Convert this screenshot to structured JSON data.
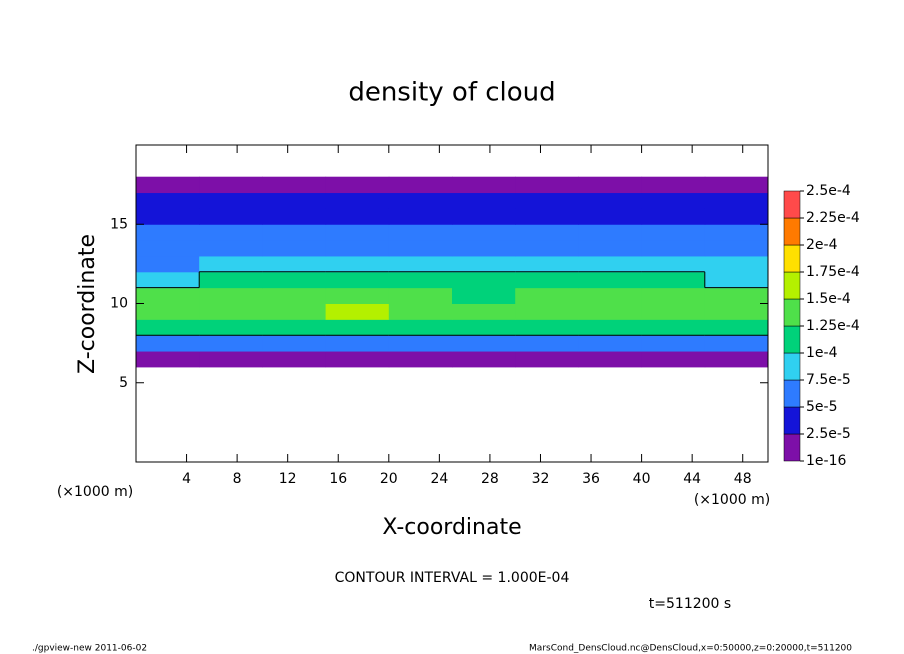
{
  "chart_data": {
    "type": "heatmap",
    "title": "density of cloud",
    "x_label": "X-coordinate",
    "y_label": "Z-coordinate",
    "x_unit": "(×1000 m)",
    "y_unit": "(×1000 m)",
    "contour_note": "CONTOUR INTERVAL = 1.000E-04",
    "time_note": "t=511200 s",
    "footer_left": "./gpview-new  2011-06-02",
    "footer_right": "MarsCond_DensCloud.nc@DensCloud,x=0:50000,z=0:20000,t=511200",
    "xlim": [
      0,
      50
    ],
    "ylim": [
      0,
      20
    ],
    "xticks": [
      4,
      8,
      12,
      16,
      20,
      24,
      28,
      32,
      36,
      40,
      44,
      48
    ],
    "yticks": [
      5,
      10,
      15
    ],
    "xbins": [
      0,
      5,
      10,
      15,
      20,
      25,
      30,
      35,
      40,
      45,
      50
    ],
    "ybins": [
      5,
      6,
      7,
      8,
      9,
      10,
      11,
      12,
      13,
      14,
      15,
      16,
      17,
      18,
      19
    ],
    "contour_level": 0.0001,
    "values": [
      [
        null,
        null,
        null,
        null,
        null,
        null,
        null,
        null,
        null,
        null
      ],
      [
        1.2e-05,
        1.2e-05,
        1.2e-05,
        1.2e-05,
        1.5e-05,
        1e-05,
        1.2e-05,
        1.2e-05,
        1.2e-05,
        1.2e-05
      ],
      [
        6.5e-05,
        7e-05,
        6.5e-05,
        6.5e-05,
        6e-05,
        5.5e-05,
        6.5e-05,
        7e-05,
        7e-05,
        6.5e-05
      ],
      [
        0.000105,
        0.00011,
        0.00011,
        0.000115,
        0.000105,
        0.0001,
        0.000105,
        0.00011,
        0.00011,
        0.000105
      ],
      [
        0.000135,
        0.00014,
        0.000145,
        0.00015,
        0.000135,
        0.000125,
        0.00013,
        0.000135,
        0.000135,
        0.00013
      ],
      [
        0.00013,
        0.000135,
        0.00014,
        0.000145,
        0.00013,
        0.00012,
        0.00013,
        0.000135,
        0.000135,
        0.000125
      ],
      [
        9e-05,
        0.0001,
        0.000105,
        0.000105,
        0.0001,
        0.000105,
        0.00011,
        0.000115,
        0.00011,
        9e-05
      ],
      [
        7e-05,
        7.5e-05,
        7.5e-05,
        7.5e-05,
        8e-05,
        8.5e-05,
        8.5e-05,
        9e-05,
        8.5e-05,
        7.5e-05
      ],
      [
        6e-05,
        6e-05,
        6e-05,
        6e-05,
        6.5e-05,
        7e-05,
        7e-05,
        7e-05,
        7e-05,
        6e-05
      ],
      [
        5e-05,
        5e-05,
        5e-05,
        5.5e-05,
        5.5e-05,
        6e-05,
        5.5e-05,
        5.5e-05,
        5.5e-05,
        5e-05
      ],
      [
        4e-05,
        4e-05,
        4e-05,
        4.5e-05,
        4.5e-05,
        4.5e-05,
        4.5e-05,
        4.5e-05,
        4.5e-05,
        4e-05
      ],
      [
        2.5e-05,
        2.5e-05,
        2.5e-05,
        2.5e-05,
        3e-05,
        3e-05,
        3e-05,
        3e-05,
        3e-05,
        2.5e-05
      ],
      [
        1e-05,
        1e-05,
        8e-06,
        8e-06,
        1e-05,
        1.2e-05,
        1.5e-05,
        1.5e-05,
        1.5e-05,
        1.2e-05
      ],
      [
        null,
        null,
        null,
        null,
        null,
        null,
        null,
        null,
        null,
        null
      ]
    ],
    "colorbar": {
      "levels": [
        {
          "value": 1e-16,
          "label": "1e-16"
        },
        {
          "value": 2.5e-05,
          "label": "2.5e-5"
        },
        {
          "value": 5e-05,
          "label": "5e-5"
        },
        {
          "value": 7.5e-05,
          "label": "7.5e-5"
        },
        {
          "value": 0.0001,
          "label": "1e-4"
        },
        {
          "value": 0.000125,
          "label": "1.25e-4"
        },
        {
          "value": 0.00015,
          "label": "1.5e-4"
        },
        {
          "value": 0.000175,
          "label": "1.75e-4"
        },
        {
          "value": 0.0002,
          "label": "2e-4"
        },
        {
          "value": 0.000225,
          "label": "2.25e-4"
        },
        {
          "value": 0.00025,
          "label": "2.5e-4"
        }
      ],
      "colors": [
        "#7d0fa8",
        "#1414d8",
        "#2e7bff",
        "#30d0f0",
        "#00d27a",
        "#4fe04a",
        "#b4f000",
        "#ffe000",
        "#ff7a00",
        "#ff4a4a"
      ]
    }
  }
}
